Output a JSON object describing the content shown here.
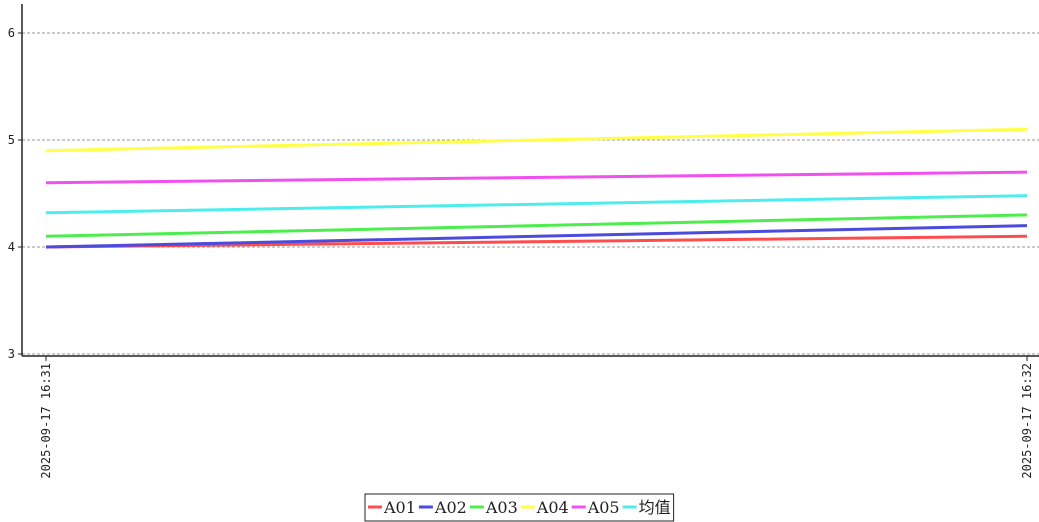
{
  "chart_data": {
    "type": "line",
    "x": [
      "2025-09-17 16:31",
      "2025-09-17 16:32"
    ],
    "ylim": [
      3,
      6
    ],
    "yticks": [
      3,
      4,
      5,
      6
    ],
    "grid": true,
    "legend_position": "bottom-center",
    "series": [
      {
        "name": "A01",
        "color": "#ff4d4d",
        "values": [
          4.0,
          4.1
        ]
      },
      {
        "name": "A02",
        "color": "#4b4bdd",
        "values": [
          4.0,
          4.2
        ]
      },
      {
        "name": "A03",
        "color": "#4ded4d",
        "values": [
          4.1,
          4.3
        ]
      },
      {
        "name": "A04",
        "color": "#ffff44",
        "values": [
          4.9,
          5.1
        ]
      },
      {
        "name": "A05",
        "color": "#f050f0",
        "values": [
          4.6,
          4.7
        ]
      },
      {
        "name": "均值",
        "color": "#4deded",
        "values": [
          4.32,
          4.48
        ]
      }
    ]
  }
}
